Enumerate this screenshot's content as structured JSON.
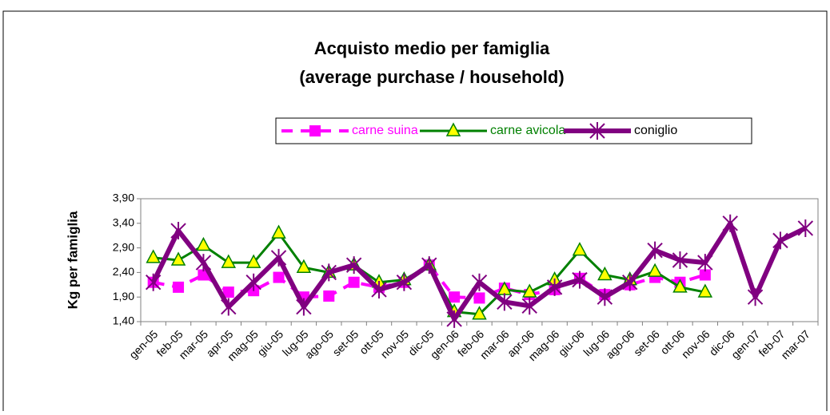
{
  "chart_data": {
    "type": "line",
    "title": "Acquisto medio per famiglia",
    "subtitle": "(average purchase / household)",
    "y_label": "Kg per famiglia",
    "categories": [
      "gen-05",
      "feb-05",
      "mar-05",
      "apr-05",
      "mag-05",
      "giu-05",
      "lug-05",
      "ago-05",
      "set-05",
      "ott-05",
      "nov-05",
      "dic-05",
      "gen-06",
      "feb-06",
      "mar-06",
      "apr-06",
      "mag-06",
      "giu-06",
      "lug-06",
      "ago-06",
      "set-06",
      "ott-06",
      "nov-06",
      "dic-06",
      "gen-07",
      "feb-07",
      "mar-07"
    ],
    "ylim": [
      1.4,
      3.9
    ],
    "yticks": [
      {
        "value": 1.4,
        "label": "1,40"
      },
      {
        "value": 1.9,
        "label": "1,90"
      },
      {
        "value": 2.4,
        "label": "2,40"
      },
      {
        "value": 2.9,
        "label": "2,90"
      },
      {
        "value": 3.4,
        "label": "3,40"
      },
      {
        "value": 3.9,
        "label": "3,90"
      }
    ],
    "grid": false,
    "series": [
      {
        "name": "carne suina",
        "color": "#ff00ff",
        "marker": "square",
        "dashed": true,
        "values": [
          2.2,
          2.1,
          2.35,
          2.0,
          2.03,
          2.3,
          1.9,
          1.92,
          2.2,
          2.1,
          2.2,
          2.55,
          1.9,
          1.88,
          2.08,
          1.95,
          2.05,
          2.28,
          1.95,
          2.15,
          2.3,
          2.2,
          2.35,
          null,
          null,
          null,
          null
        ]
      },
      {
        "name": "carne avicola",
        "color": "#008000",
        "marker": "triangle",
        "marker_fill": "#ffff00",
        "dashed": false,
        "values": [
          2.7,
          2.65,
          2.95,
          2.6,
          2.6,
          3.2,
          2.5,
          2.4,
          2.55,
          2.2,
          2.25,
          2.55,
          1.6,
          1.55,
          2.05,
          2.0,
          2.25,
          2.85,
          2.35,
          2.25,
          2.42,
          2.1,
          2.0,
          null,
          null,
          null,
          null
        ]
      },
      {
        "name": "coniglio",
        "color": "#800080",
        "marker": "star",
        "dashed": false,
        "values": [
          2.2,
          3.25,
          2.6,
          1.7,
          2.2,
          2.7,
          1.7,
          2.4,
          2.55,
          2.05,
          2.2,
          2.55,
          1.45,
          2.2,
          1.8,
          1.72,
          2.1,
          2.25,
          1.9,
          2.2,
          2.85,
          2.65,
          2.6,
          3.4,
          1.9,
          3.05,
          3.3
        ]
      }
    ]
  }
}
